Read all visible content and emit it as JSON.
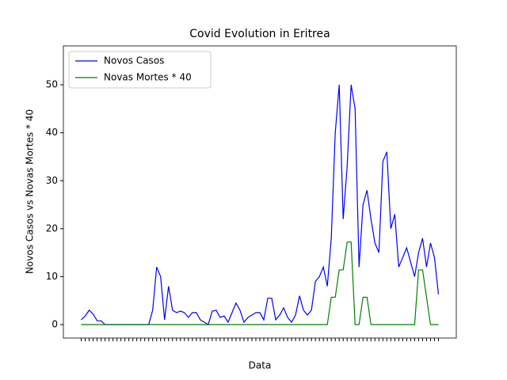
{
  "chart_data": {
    "type": "line",
    "title": "Covid Evolution in Eritrea",
    "x_label": "Data",
    "y_label": "Novos Casos vs Novas Mortes * 40",
    "categories": [
      null,
      null,
      null,
      null,
      null,
      null,
      null,
      null,
      null,
      null,
      null,
      null,
      null,
      null,
      null,
      null,
      null,
      null,
      null,
      null,
      null,
      null,
      null,
      null,
      null,
      null,
      null,
      null,
      null,
      null,
      null,
      null,
      null,
      null,
      null,
      null,
      null,
      null,
      null,
      null,
      null,
      null,
      null,
      null,
      null,
      null,
      null,
      null,
      null,
      null,
      null,
      null,
      null,
      null,
      null,
      null,
      null,
      null,
      null,
      null,
      null,
      null,
      null,
      null,
      null,
      null,
      null,
      null,
      null,
      null,
      null,
      null,
      null,
      null,
      null,
      null,
      null,
      null,
      null,
      null,
      null,
      null,
      null,
      null,
      null,
      null,
      null,
      null,
      null,
      null,
      null
    ],
    "series": [
      {
        "name": "Novos Casos",
        "color": "#0000ff",
        "values": [
          1,
          1.8,
          3,
          2.2,
          0.8,
          0.8,
          0,
          0,
          0,
          0,
          0,
          0,
          0,
          0,
          0,
          0,
          0,
          0,
          3,
          12,
          10,
          1,
          8,
          3,
          2.5,
          2.8,
          2.5,
          1.5,
          2.5,
          2.5,
          1,
          0.5,
          0,
          2.8,
          3,
          1.5,
          1.8,
          0.5,
          2.5,
          4.5,
          3,
          0.5,
          1.5,
          2,
          2.5,
          2.5,
          1,
          5.5,
          5.5,
          1,
          2,
          3.5,
          1.5,
          0.5,
          2,
          6,
          3,
          2,
          3,
          9,
          10,
          12,
          8,
          18,
          40,
          50,
          22,
          33,
          50,
          45,
          12,
          25,
          28,
          22,
          17,
          15,
          34,
          36,
          20,
          23,
          12,
          14,
          16,
          13,
          10,
          15,
          18,
          12,
          17,
          14,
          6.3
        ]
      },
      {
        "name": "Novas Mortes * 40",
        "color": "#008000",
        "values": [
          0,
          0,
          0,
          0,
          0,
          0,
          0,
          0,
          0,
          0,
          0,
          0,
          0,
          0,
          0,
          0,
          0,
          0,
          0,
          0,
          0,
          0,
          0,
          0,
          0,
          0,
          0,
          0,
          0,
          0,
          0,
          0,
          0,
          0,
          0,
          0,
          0,
          0,
          0,
          0,
          0,
          0,
          0,
          0,
          0,
          0,
          0,
          0,
          0,
          0,
          0,
          0,
          0,
          0,
          0,
          0,
          0,
          0,
          0,
          0,
          0,
          0,
          0,
          5.7,
          5.7,
          11.4,
          11.4,
          17.2,
          17.2,
          0,
          0,
          5.7,
          5.7,
          0,
          0,
          0,
          0,
          0,
          0,
          0,
          0,
          0,
          0,
          0,
          0,
          11.4,
          11.4,
          5.7,
          0,
          0,
          0
        ]
      }
    ],
    "ylim": [
      -2.8,
      58.1
    ],
    "yticks": [
      0,
      10,
      20,
      30,
      40,
      50
    ],
    "legend": "upper left"
  }
}
